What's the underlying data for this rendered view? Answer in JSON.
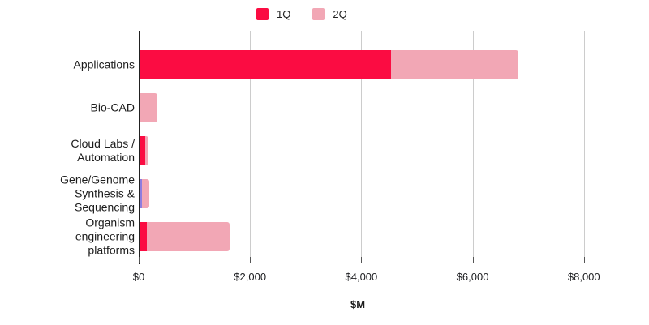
{
  "chart_data": {
    "type": "bar",
    "orientation": "horizontal",
    "stacked": true,
    "title": "",
    "xlabel": "$M",
    "ylabel": "",
    "categories": [
      "Applications",
      "Bio-CAD",
      "Cloud Labs /\nAutomation",
      "Gene/Genome\nSynthesis &\nSequencing",
      "Organism\nengineering\nplatforms"
    ],
    "series": [
      {
        "name": "1Q",
        "color": "#fb0c42",
        "values": [
          4500,
          0,
          90,
          30,
          110
        ]
      },
      {
        "name": "2Q",
        "color": "#f2a7b5",
        "values": [
          2300,
          300,
          60,
          130,
          1500
        ]
      }
    ],
    "x_ticks": [
      {
        "value": 0,
        "label": "$0"
      },
      {
        "value": 2000,
        "label": "$2,000"
      },
      {
        "value": 4000,
        "label": "$4,000"
      },
      {
        "value": 6000,
        "label": "$6,000"
      },
      {
        "value": 8000,
        "label": "$8,000"
      }
    ],
    "xlim": [
      0,
      8820
    ],
    "grid": true,
    "legend_position": "top",
    "units": "$M",
    "segment_color_overrides": [
      {
        "row": 3,
        "series": 0,
        "color": "#8f7dde"
      }
    ]
  },
  "palette": {
    "background": "#ffffff",
    "gridline": "#cccccc",
    "axis_line": "#212121",
    "tick_mark": "#555555",
    "text": "#202124"
  }
}
